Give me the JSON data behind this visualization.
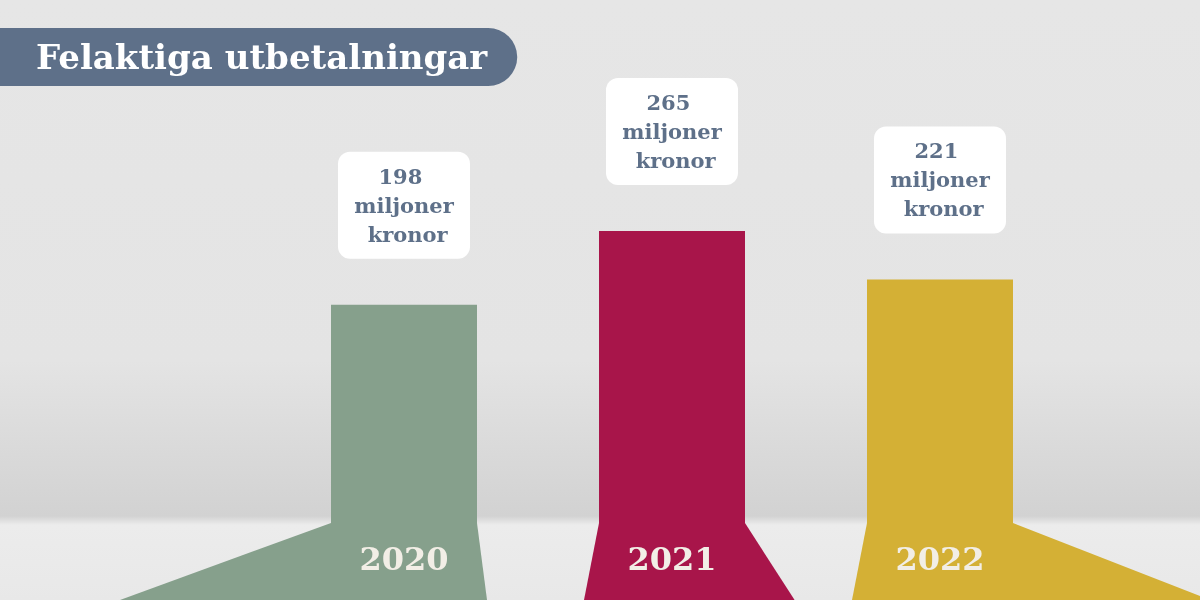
{
  "chart_data": {
    "type": "bar",
    "title": "Felaktiga utbetalningar",
    "categories": [
      "2020",
      "2021",
      "2022"
    ],
    "values": [
      198,
      265,
      221
    ],
    "colors": [
      "#86a08c",
      "#a8154a",
      "#d4b035"
    ],
    "value_labels": [
      "198 miljoner kronor",
      "265 miljoner kronor",
      "221 miljoner kronor"
    ]
  }
}
